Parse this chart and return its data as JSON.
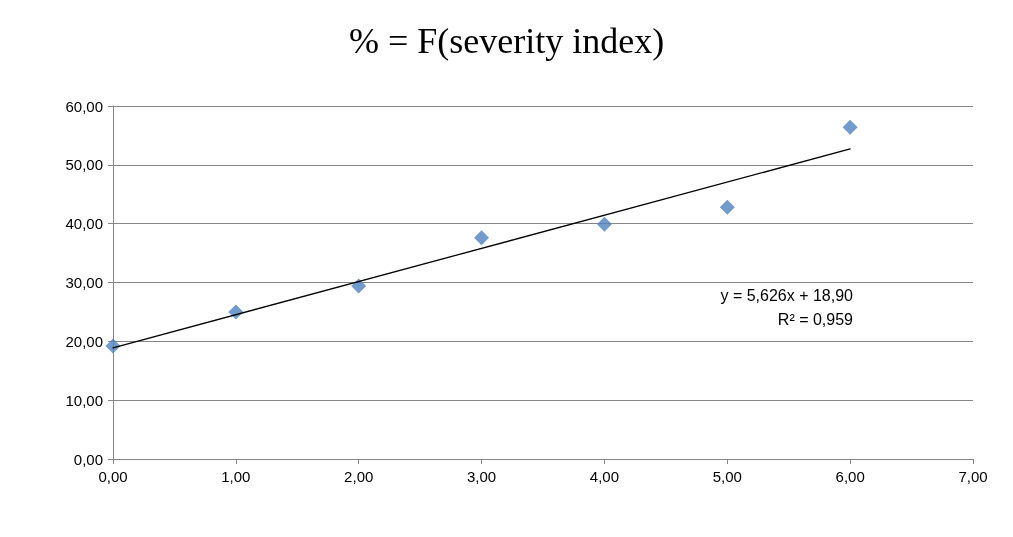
{
  "chart_data": {
    "type": "scatter",
    "title": "% = F(severity index)",
    "x": [
      0,
      1,
      2,
      3,
      4,
      5,
      6
    ],
    "series": [
      {
        "color": "#4f81bd",
        "marker": "diamond",
        "values": [
          19.2,
          25.0,
          29.4,
          37.6,
          39.9,
          42.8,
          56.4
        ]
      },
      {
        "type": "line",
        "color": "#000000",
        "marker": "none",
        "line_style": "solid",
        "x": [
          0,
          6
        ],
        "values": [
          18.9,
          52.7
        ]
      }
    ],
    "xlim": [
      0,
      7
    ],
    "xticks": [
      {
        "value": 0,
        "label": "0,00"
      },
      {
        "value": 1,
        "label": "1,00"
      },
      {
        "value": 2,
        "label": "2,00"
      },
      {
        "value": 3,
        "label": "3,00"
      },
      {
        "value": 4,
        "label": "4,00"
      },
      {
        "value": 5,
        "label": "5,00"
      },
      {
        "value": 6,
        "label": "6,00"
      },
      {
        "value": 7,
        "label": "7,00"
      }
    ],
    "ylim": [
      0,
      60
    ],
    "yticks": [
      {
        "value": 0,
        "label": "0,00"
      },
      {
        "value": 10,
        "label": "10,00"
      },
      {
        "value": 20,
        "label": "20,00"
      },
      {
        "value": 30,
        "label": "30,00"
      },
      {
        "value": 40,
        "label": "40,00"
      },
      {
        "value": 50,
        "label": "50,00"
      },
      {
        "value": 60,
        "label": "60,00"
      }
    ],
    "grid": "y",
    "annotations": [
      "y = 5,626x + 18,90",
      "R² = 0,959"
    ]
  }
}
